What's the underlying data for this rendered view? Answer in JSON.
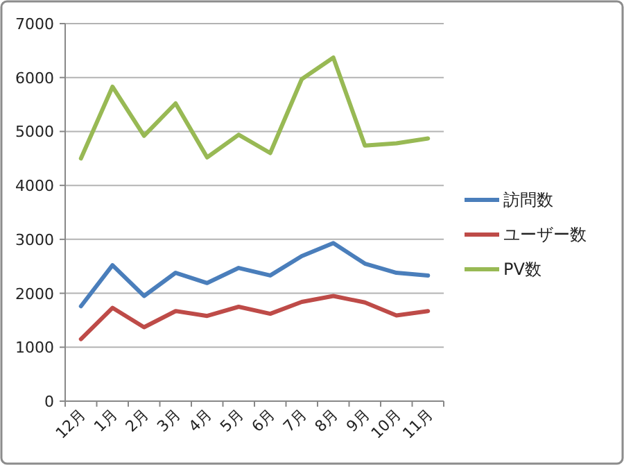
{
  "chart_data": {
    "type": "line",
    "categories": [
      "12月",
      "1月",
      "2月",
      "3月",
      "4月",
      "5月",
      "6月",
      "7月",
      "8月",
      "9月",
      "10月",
      "11月"
    ],
    "series": [
      {
        "name": "訪問数",
        "color": "#4a7ebb",
        "values": [
          1760,
          2520,
          1950,
          2380,
          2190,
          2470,
          2330,
          2690,
          2930,
          2550,
          2380,
          2330
        ]
      },
      {
        "name": "ユーザー数",
        "color": "#be4b48",
        "values": [
          1150,
          1730,
          1370,
          1670,
          1580,
          1750,
          1620,
          1840,
          1950,
          1830,
          1590,
          1670
        ]
      },
      {
        "name": "PV数",
        "color": "#98b954",
        "values": [
          4500,
          5830,
          4920,
          5520,
          4520,
          4940,
          4600,
          5970,
          6370,
          4740,
          4780,
          4870
        ]
      }
    ],
    "ylim": [
      0,
      7000
    ],
    "yticks": [
      0,
      1000,
      2000,
      3000,
      4000,
      5000,
      6000,
      7000
    ],
    "grid": "y",
    "legend": "right",
    "marker": "none",
    "line_style": "solid"
  }
}
